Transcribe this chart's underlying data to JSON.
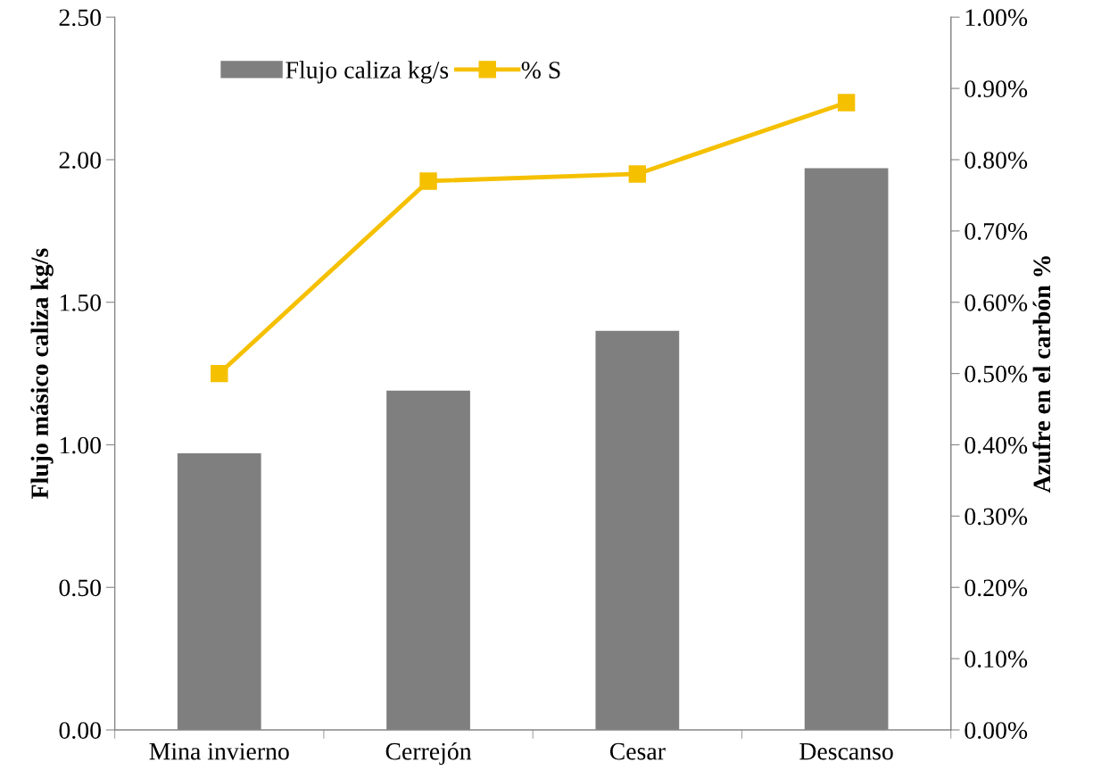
{
  "chart_data": {
    "type": "bar",
    "ylabel": "Flujo másico caliza kg/s",
    "y2label": "Azufre en el carbón %",
    "categories": [
      "Mina invierno",
      "Cerrejón",
      "Cesar",
      "Descanso"
    ],
    "series": [
      {
        "name": "Flujo caliza kg/s",
        "color": "#7f7f7f",
        "values": [
          0.97,
          1.19,
          1.4,
          1.97
        ]
      },
      {
        "name": "% S",
        "type": "line",
        "axis": "y2",
        "color": "#f5c000",
        "marker": "square",
        "line_style": "solid",
        "values": [
          0.5,
          0.77,
          0.78,
          0.88
        ]
      }
    ],
    "ylim": [
      0,
      2.5
    ],
    "yticks": [
      {
        "value": 0,
        "label": "0.00"
      },
      {
        "value": 0.5,
        "label": "0.50"
      },
      {
        "value": 1,
        "label": "1.00"
      },
      {
        "value": 1.5,
        "label": "1.50"
      },
      {
        "value": 2,
        "label": "2.00"
      },
      {
        "value": 2.5,
        "label": "2.50"
      }
    ],
    "y2lim": [
      0,
      1
    ],
    "y2ticks": [
      {
        "value": 0,
        "label": "0.00%"
      },
      {
        "value": 0.1,
        "label": "0.10%"
      },
      {
        "value": 0.2,
        "label": "0.20%"
      },
      {
        "value": 0.3,
        "label": "0.30%"
      },
      {
        "value": 0.4,
        "label": "0.40%"
      },
      {
        "value": 0.5,
        "label": "0.50%"
      },
      {
        "value": 0.6,
        "label": "0.60%"
      },
      {
        "value": 0.7,
        "label": "0.70%"
      },
      {
        "value": 0.8,
        "label": "0.80%"
      },
      {
        "value": 0.9,
        "label": "0.90%"
      },
      {
        "value": 1,
        "label": "1.00%"
      }
    ],
    "grid": false,
    "legend": "top left"
  }
}
